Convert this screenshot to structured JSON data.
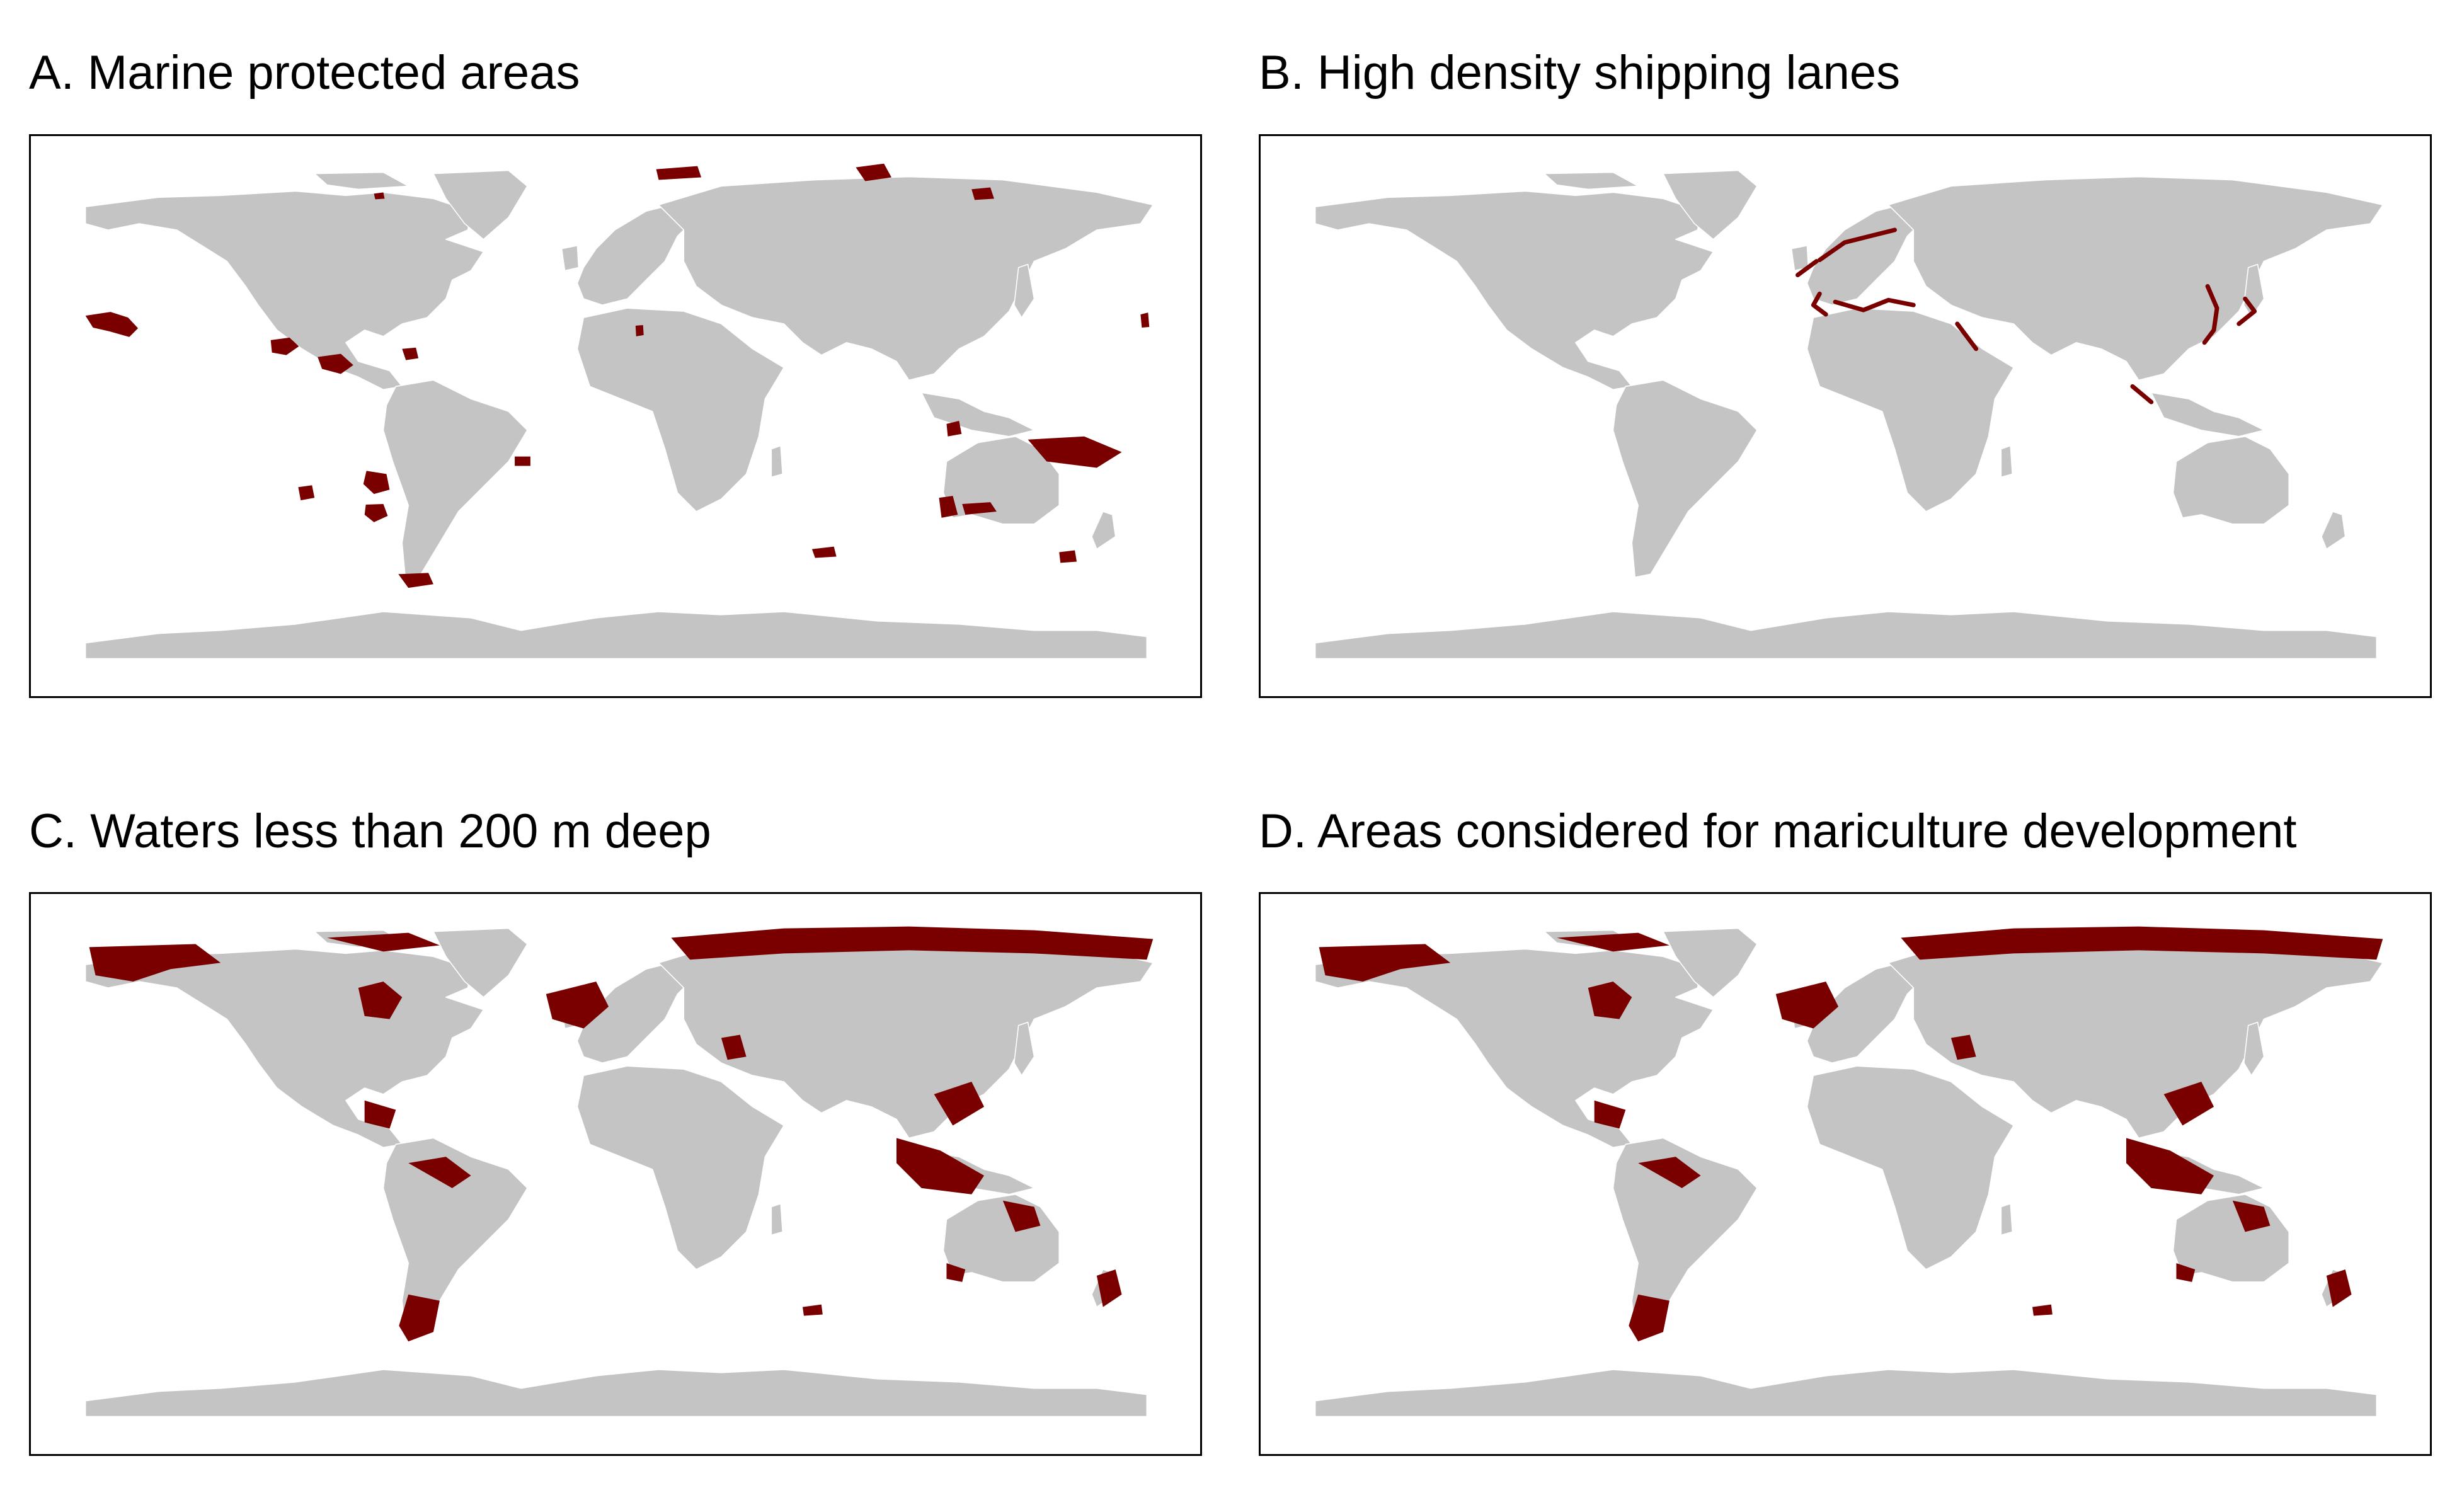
{
  "colors": {
    "land": "#c4c4c4",
    "highlight": "#7a0000",
    "border": "#ffffff",
    "frame": "#000000"
  },
  "panels": [
    {
      "id": "A",
      "title": "A. Marine protected areas"
    },
    {
      "id": "B",
      "title": "B. High density shipping lanes"
    },
    {
      "id": "C",
      "title": "C. Waters less than 200 m deep"
    },
    {
      "id": "D",
      "title": "D. Areas considered for mariculture development"
    }
  ]
}
